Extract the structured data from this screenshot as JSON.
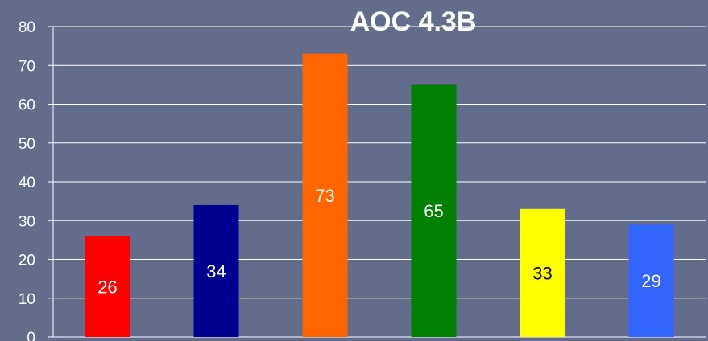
{
  "chart_data": {
    "type": "bar",
    "title": "AOC 4.3B",
    "xlabel": "",
    "ylabel": "",
    "ylim": [
      0,
      80
    ],
    "yticks": [
      0,
      10,
      20,
      30,
      40,
      50,
      60,
      70,
      80
    ],
    "grid": true,
    "legend": "none",
    "categories": [
      "",
      "",
      "",
      "",
      "",
      ""
    ],
    "values": [
      26,
      34,
      73,
      65,
      33,
      29
    ],
    "colors": [
      "#ff0000",
      "#000090",
      "#ff6600",
      "#008000",
      "#ffff00",
      "#3366ff"
    ],
    "label_colors": [
      "#ffffff",
      "#ffffff",
      "#ffffff",
      "#ffffff",
      "#000000",
      "#ffffff"
    ],
    "background": "#646c8c"
  }
}
